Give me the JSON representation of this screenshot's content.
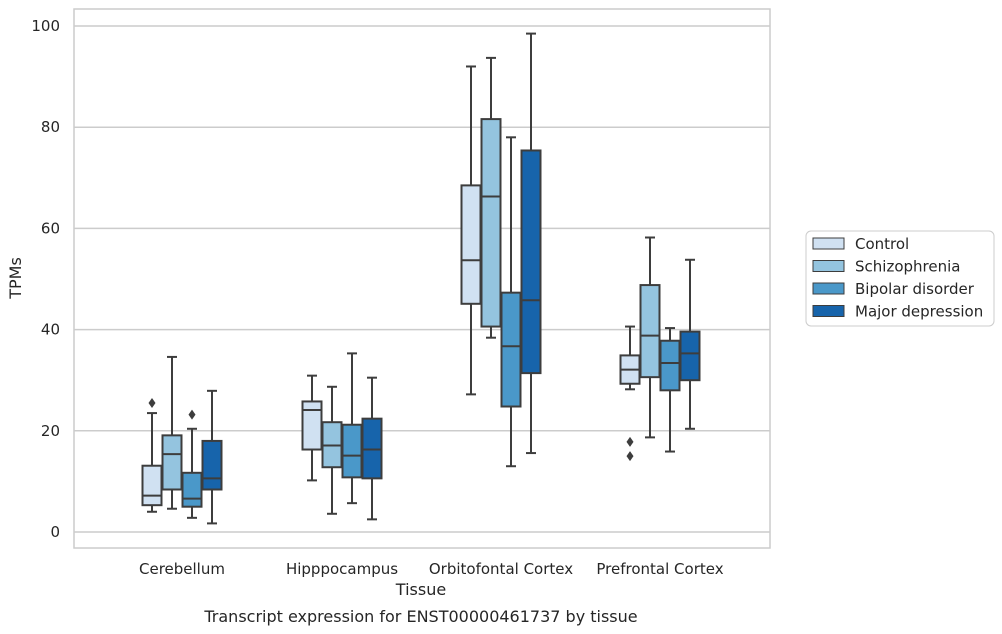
{
  "chart_data": {
    "type": "box",
    "xlabel": "Tissue",
    "ylabel": "TPMs",
    "caption": "Transcript expression for ENST00000461737 by tissue",
    "categories": [
      "Cerebellum",
      "Hipppocampus",
      "Orbitofontal Cortex",
      "Prefrontal Cortex"
    ],
    "ylim": [
      -3,
      103
    ],
    "yticks": [
      0,
      20,
      40,
      60,
      80,
      100
    ],
    "grid": "horizontal",
    "legend_position": "right",
    "series": [
      {
        "name": "Control",
        "color": "#d0e1f2",
        "boxes": [
          {
            "whisker_low": 4,
            "q1": 5.3,
            "median": 7.2,
            "q3": 13.1,
            "whisker_high": 23.5,
            "outliers": [
              25.5
            ]
          },
          {
            "whisker_low": 10.2,
            "q1": 16.3,
            "median": 24.1,
            "q3": 25.8,
            "whisker_high": 30.9,
            "outliers": []
          },
          {
            "whisker_low": 27.2,
            "q1": 45.1,
            "median": 53.7,
            "q3": 68.5,
            "whisker_high": 92.0,
            "outliers": []
          },
          {
            "whisker_low": 28.2,
            "q1": 29.3,
            "median": 32.1,
            "q3": 34.9,
            "whisker_high": 40.6,
            "outliers": [
              17.8,
              15.0
            ]
          }
        ]
      },
      {
        "name": "Schizophrenia",
        "color": "#94c4df",
        "boxes": [
          {
            "whisker_low": 4.6,
            "q1": 8.4,
            "median": 15.4,
            "q3": 19.1,
            "whisker_high": 34.6,
            "outliers": []
          },
          {
            "whisker_low": 3.6,
            "q1": 12.8,
            "median": 17.1,
            "q3": 21.7,
            "whisker_high": 28.7,
            "outliers": []
          },
          {
            "whisker_low": 38.4,
            "q1": 40.6,
            "median": 66.3,
            "q3": 81.6,
            "whisker_high": 93.7,
            "outliers": []
          },
          {
            "whisker_low": 18.7,
            "q1": 30.6,
            "median": 38.8,
            "q3": 48.8,
            "whisker_high": 58.2,
            "outliers": []
          }
        ]
      },
      {
        "name": "Bipolar disorder",
        "color": "#4a98c9",
        "boxes": [
          {
            "whisker_low": 2.8,
            "q1": 5.0,
            "median": 6.6,
            "q3": 11.7,
            "whisker_high": 20.4,
            "outliers": [
              23.2
            ]
          },
          {
            "whisker_low": 5.7,
            "q1": 10.8,
            "median": 15.1,
            "q3": 21.2,
            "whisker_high": 35.3,
            "outliers": []
          },
          {
            "whisker_low": 13.0,
            "q1": 24.8,
            "median": 36.7,
            "q3": 47.3,
            "whisker_high": 78.0,
            "outliers": []
          },
          {
            "whisker_low": 15.9,
            "q1": 28.0,
            "median": 33.4,
            "q3": 37.8,
            "whisker_high": 40.3,
            "outliers": []
          }
        ]
      },
      {
        "name": "Major depression",
        "color": "#1764ab",
        "boxes": [
          {
            "whisker_low": 1.7,
            "q1": 8.4,
            "median": 10.6,
            "q3": 18.0,
            "whisker_high": 27.9,
            "outliers": []
          },
          {
            "whisker_low": 2.5,
            "q1": 10.6,
            "median": 16.3,
            "q3": 22.4,
            "whisker_high": 30.5,
            "outliers": []
          },
          {
            "whisker_low": 15.6,
            "q1": 31.4,
            "median": 45.8,
            "q3": 75.4,
            "whisker_high": 98.5,
            "outliers": []
          },
          {
            "whisker_low": 20.4,
            "q1": 30.0,
            "median": 35.3,
            "q3": 39.6,
            "whisker_high": 53.8,
            "outliers": []
          }
        ]
      }
    ]
  }
}
